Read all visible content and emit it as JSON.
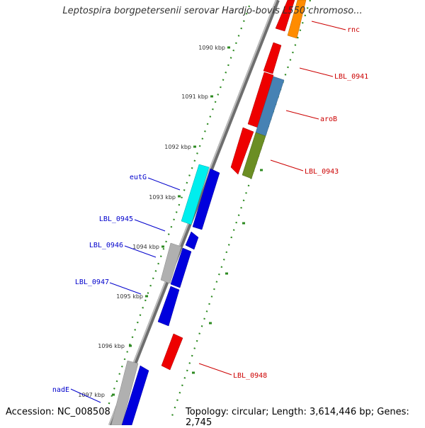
{
  "title": "Leptospira borgpetersenii serovar Hardjo-bovis L550 chromoso...",
  "accession_text": "Accession: NC_008508",
  "topology_text": "Topology: circular; Length: 3,614,446 bp; Genes: 2,745",
  "colors": {
    "backbone": "#888888",
    "tick": "#2e8b22",
    "right_label": "#cc0000",
    "left_label": "#0000cc",
    "red_gene": "#ee0000",
    "blue_gene": "#0000dd",
    "cyan_gene": "#00eeee",
    "gray_gene": "#b0b0b0",
    "orange_gene": "#ff8c00",
    "steelblue_gene": "#4682b4",
    "olive_gene": "#6b8e23"
  },
  "scale_labels": [
    "1090 kbp",
    "1091 kbp",
    "1092 kbp",
    "1093 kbp",
    "1094 kbp",
    "1095 kbp",
    "1096 kbp",
    "1097 kbp"
  ],
  "genes_right": [
    "rnc",
    "LBL_0941",
    "aroB",
    "LBL_0943",
    "LBL_0948"
  ],
  "genes_left": [
    "eutG",
    "LBL_0945",
    "LBL_0946",
    "LBL_0947",
    "nadE"
  ]
}
